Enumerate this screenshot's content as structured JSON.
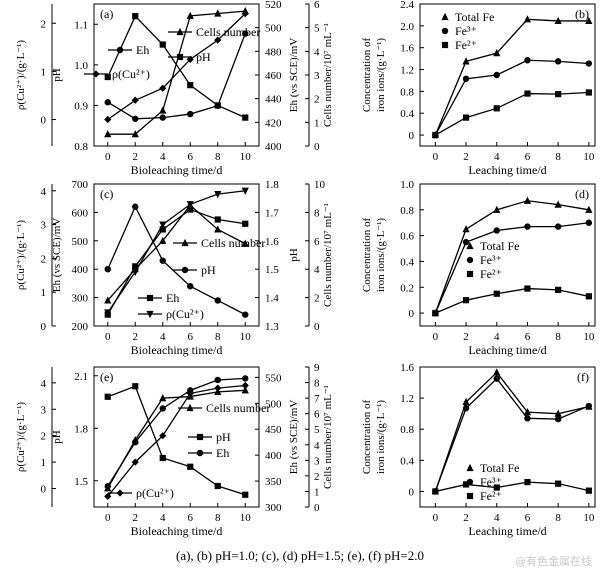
{
  "caption": "(a), (b) pH=1.0; (c), (d) pH=1.5; (e), (f) pH=2.0",
  "watermark": "@有色金属在线",
  "chart_data": [
    {
      "id": "a",
      "type": "line",
      "panel_label": "(a)",
      "xlabel": "Bioleaching time/d",
      "xlim": [
        -1,
        11
      ],
      "x": [
        0,
        2,
        4,
        6,
        8,
        10
      ],
      "x_ticks": [
        "0",
        "2",
        "4",
        "6",
        "8",
        "10"
      ],
      "axes": {
        "ph": {
          "label": "pH",
          "lim": [
            0.8,
            1.15
          ],
          "ticks": [
            "0.8",
            "0.9",
            "1.0",
            "1.1"
          ]
        },
        "cu": {
          "label": "ρ(Cu²⁺)/(g·L⁻¹)",
          "lim": [
            -0.55,
            2.4
          ],
          "ticks": [
            "0",
            "1",
            "2"
          ]
        },
        "eh": {
          "label": "Eh (vs SCE)/mV",
          "lim": [
            400,
            520
          ],
          "ticks": [
            "400",
            "420",
            "440",
            "460",
            "480",
            "500",
            "520"
          ]
        },
        "cell": {
          "label": "Cells number/10⁷ mL⁻¹",
          "lim": [
            0,
            6
          ],
          "ticks": [
            "0",
            "1",
            "2",
            "3",
            "4",
            "5",
            "6"
          ]
        }
      },
      "series": [
        {
          "name": "Eh",
          "axis": "eh",
          "marker": "circle",
          "values": [
            437,
            423,
            424,
            427,
            434,
            495
          ]
        },
        {
          "name": "ρ(Cu²⁺)",
          "axis": "cu",
          "marker": "diamond",
          "values": [
            0,
            0.4,
            0.65,
            1.25,
            1.65,
            2.2
          ]
        },
        {
          "name": "Cells number",
          "axis": "cell",
          "marker": "triangle",
          "values": [
            0.5,
            0.5,
            1.5,
            5.5,
            5.6,
            5.7
          ]
        },
        {
          "name": "pH",
          "axis": "ph",
          "marker": "square",
          "values": [
            0.97,
            1.12,
            1.05,
            0.95,
            0.9,
            0.87
          ]
        }
      ],
      "legend": [
        {
          "name": "Eh",
          "marker": "circle"
        },
        {
          "name": "ρ(Cu²⁺)",
          "marker": "diamond"
        },
        {
          "name": "Cells number",
          "marker": "triangle"
        },
        {
          "name": "pH",
          "marker": "square"
        }
      ]
    },
    {
      "id": "b",
      "type": "line",
      "panel_label": "(b)",
      "xlabel": "Leaching time/d",
      "ylabel": "Concentration of iron ions/(g·L⁻¹)",
      "xlim": [
        -1,
        10.4
      ],
      "ylim": [
        -0.2,
        2.4
      ],
      "x": [
        0,
        2,
        4,
        6,
        8,
        10
      ],
      "x_ticks": [
        "0",
        "2",
        "4",
        "6",
        "8",
        "10"
      ],
      "y_ticks": [
        "0",
        "0.4",
        "0.8",
        "1.2",
        "1.6",
        "2.0",
        "2.4"
      ],
      "series": [
        {
          "name": "Total Fe",
          "marker": "triangle",
          "values": [
            0,
            1.35,
            1.5,
            2.12,
            2.09,
            2.09
          ]
        },
        {
          "name": "Fe³⁺",
          "marker": "circle",
          "values": [
            0,
            1.03,
            1.1,
            1.37,
            1.35,
            1.31
          ]
        },
        {
          "name": "Fe²⁺",
          "marker": "square",
          "values": [
            0,
            0.32,
            0.49,
            0.76,
            0.75,
            0.78
          ]
        }
      ]
    },
    {
      "id": "c",
      "type": "line",
      "panel_label": "(c)",
      "xlabel": "Bioleaching time/d",
      "xlim": [
        -1,
        11
      ],
      "x": [
        0,
        2,
        4,
        6,
        8,
        10
      ],
      "x_ticks": [
        "0",
        "2",
        "4",
        "6",
        "8",
        "10"
      ],
      "axes": {
        "eh": {
          "label": "Eh (vs SCE)/mV",
          "lim": [
            200,
            700
          ],
          "ticks": [
            "200",
            "300",
            "400",
            "500",
            "600",
            "700"
          ]
        },
        "cu": {
          "label": "ρ(Cu²⁺)/(g·L⁻¹)",
          "lim": [
            0,
            4.2
          ],
          "ticks": [
            "0",
            "1",
            "2",
            "3",
            "4"
          ]
        },
        "ph": {
          "label": "pH",
          "lim": [
            1.3,
            1.8
          ],
          "ticks": [
            "1.3",
            "1.4",
            "1.5",
            "1.6",
            "1.7",
            "1.8"
          ]
        },
        "cell": {
          "label": "Cells number/10⁷ mL⁻¹",
          "lim": [
            0,
            10
          ],
          "ticks": [
            "0",
            "2",
            "4",
            "6",
            "8",
            "10"
          ]
        }
      },
      "series": [
        {
          "name": "Cells number",
          "axis": "cell",
          "marker": "triangle",
          "values": [
            1.8,
            4.0,
            6.0,
            8.5,
            6.8,
            5.8
          ]
        },
        {
          "name": "pH",
          "axis": "ph",
          "marker": "circle",
          "values": [
            1.5,
            1.72,
            1.53,
            1.44,
            1.39,
            1.34
          ]
        },
        {
          "name": "Eh",
          "axis": "eh",
          "marker": "square",
          "values": [
            240,
            410,
            540,
            610,
            575,
            560
          ]
        },
        {
          "name": "ρ(Cu²⁺)",
          "axis": "cu",
          "marker": "triangle-down",
          "values": [
            0.4,
            1.6,
            3.0,
            3.6,
            3.9,
            4.0
          ]
        }
      ],
      "legend": [
        {
          "name": "Cells number",
          "marker": "triangle"
        },
        {
          "name": "pH",
          "marker": "circle"
        },
        {
          "name": "Eh",
          "marker": "square"
        },
        {
          "name": "ρ(Cu²⁺)",
          "marker": "triangle-down"
        }
      ]
    },
    {
      "id": "d",
      "type": "line",
      "panel_label": "(d)",
      "xlabel": "Leaching time/d",
      "ylabel": "Concentration of iron ions/(g·L⁻¹)",
      "xlim": [
        -1,
        10.4
      ],
      "ylim": [
        -0.1,
        1.0
      ],
      "x": [
        0,
        2,
        4,
        6,
        8,
        10
      ],
      "x_ticks": [
        "0",
        "2",
        "4",
        "6",
        "8",
        "10"
      ],
      "y_ticks": [
        "0",
        "0.2",
        "0.4",
        "0.6",
        "0.8",
        "1.0"
      ],
      "series": [
        {
          "name": "Total Fe",
          "marker": "triangle",
          "values": [
            0,
            0.65,
            0.8,
            0.87,
            0.84,
            0.8
          ]
        },
        {
          "name": "Fe³⁺",
          "marker": "circle",
          "values": [
            0,
            0.55,
            0.64,
            0.67,
            0.67,
            0.7
          ]
        },
        {
          "name": "Fe²⁺",
          "marker": "square",
          "values": [
            0,
            0.1,
            0.15,
            0.19,
            0.18,
            0.13
          ]
        }
      ]
    },
    {
      "id": "e",
      "type": "line",
      "panel_label": "(e)",
      "xlabel": "Bioleaching time/d",
      "xlim": [
        -1,
        11
      ],
      "x": [
        0,
        2,
        4,
        6,
        8,
        10
      ],
      "x_ticks": [
        "0",
        "2",
        "4",
        "6",
        "8",
        "10"
      ],
      "axes": {
        "ph": {
          "label": "pH",
          "lim": [
            1.35,
            2.15
          ],
          "ticks": [
            "1.5",
            "1.8",
            "2.1"
          ]
        },
        "cu": {
          "label": "ρ(Cu²⁺)/(g·L⁻¹)",
          "lim": [
            -0.7,
            4.6
          ],
          "ticks": [
            "0",
            "1",
            "2",
            "3",
            "4"
          ]
        },
        "eh": {
          "label": "Eh (vs SCE)/mV",
          "lim": [
            300,
            570
          ],
          "ticks": [
            "300",
            "350",
            "400",
            "450",
            "500",
            "550"
          ]
        },
        "cell": {
          "label": "Cells number/10⁷ mL⁻¹",
          "lim": [
            0,
            9
          ],
          "ticks": [
            "0",
            "1",
            "2",
            "3",
            "4",
            "5",
            "6",
            "7",
            "8",
            "9"
          ]
        }
      },
      "series": [
        {
          "name": "Cells number",
          "axis": "cell",
          "marker": "triangle",
          "values": [
            1.2,
            4.3,
            7.0,
            7.1,
            7.4,
            7.5
          ]
        },
        {
          "name": "pH",
          "axis": "ph",
          "marker": "square",
          "values": [
            1.98,
            2.04,
            1.63,
            1.58,
            1.47,
            1.42
          ]
        },
        {
          "name": "Eh",
          "axis": "eh",
          "marker": "circle",
          "values": [
            340,
            425,
            490,
            525,
            545,
            548
          ]
        },
        {
          "name": "ρ(Cu²⁺)",
          "axis": "cu",
          "marker": "diamond",
          "values": [
            -0.3,
            1.0,
            2.0,
            3.6,
            3.8,
            3.9
          ]
        }
      ],
      "legend": [
        {
          "name": "Cells number",
          "marker": "triangle"
        },
        {
          "name": "pH",
          "marker": "square"
        },
        {
          "name": "Eh",
          "marker": "circle"
        },
        {
          "name": "ρ(Cu²⁺)",
          "marker": "diamond"
        }
      ]
    },
    {
      "id": "f",
      "type": "line",
      "panel_label": "(f)",
      "xlabel": "Leaching time/d",
      "ylabel": "Concentration of iron ions/(g·L⁻¹)",
      "xlim": [
        -1,
        10.4
      ],
      "ylim": [
        -0.2,
        1.6
      ],
      "x": [
        0,
        2,
        4,
        6,
        8,
        10
      ],
      "x_ticks": [
        "0",
        "2",
        "4",
        "6",
        "8",
        "10"
      ],
      "y_ticks": [
        "0",
        "0.4",
        "0.8",
        "1.2",
        "1.6"
      ],
      "series": [
        {
          "name": "Total Fe",
          "marker": "triangle",
          "values": [
            0,
            1.15,
            1.53,
            1.02,
            1.0,
            1.09
          ]
        },
        {
          "name": "Fe³⁺",
          "marker": "circle",
          "values": [
            0,
            1.07,
            1.45,
            0.94,
            0.93,
            1.1
          ]
        },
        {
          "name": "Fe²⁺",
          "marker": "square",
          "values": [
            0,
            0.09,
            0.05,
            0.12,
            0.1,
            0.01
          ]
        }
      ]
    }
  ]
}
